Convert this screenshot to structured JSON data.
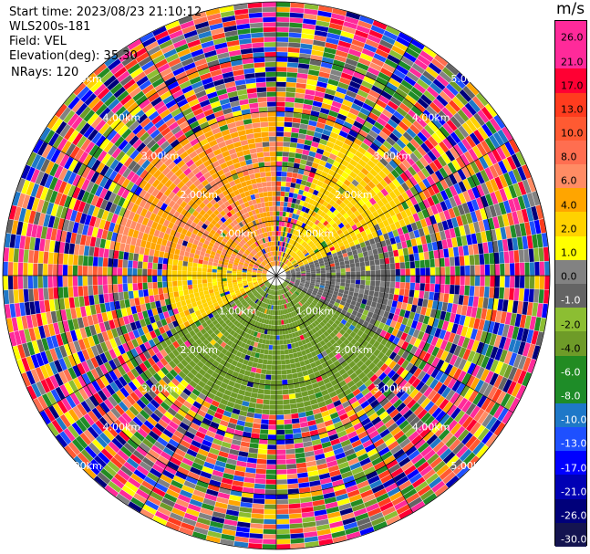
{
  "header": {
    "start_time": "Start time: 2023/08/23 21:10:12",
    "instrument": "WLS200s-181",
    "field": "Field: VEL",
    "elevation": "Elevation(deg): 35.30",
    "nrays": "NRays: 120"
  },
  "colorbar": {
    "unit": "m/s",
    "labels": [
      "26.0",
      "21.0",
      "17.0",
      "13.0",
      "10.0",
      "8.0",
      "6.0",
      "4.0",
      "2.0",
      "1.0",
      "0.0",
      "-1.0",
      "-2.0",
      "-4.0",
      "-6.0",
      "-8.0",
      "-10.0",
      "-13.0",
      "-17.0",
      "-21.0",
      "-26.0",
      "-30.0"
    ],
    "colors": [
      "#ff2a9a",
      "#ff2a9a",
      "#ff0033",
      "#ff3c1e",
      "#ff5a32",
      "#ff6e50",
      "#ff8c64",
      "#ffa500",
      "#ffd200",
      "#ffff00",
      "#828282",
      "#646464",
      "#8cbe32",
      "#6e9b28",
      "#228b22",
      "#1e8c28",
      "#1e78c8",
      "#1e50ff",
      "#0000ff",
      "#0000b4",
      "#00007a",
      "#141450"
    ]
  },
  "chart_data": {
    "type": "heatmap",
    "title": "",
    "projection": "polar PPI",
    "field": "VEL",
    "units": "m/s",
    "nrays": 120,
    "range_rings_km": [
      1.0,
      2.0,
      3.0,
      4.0,
      5.0
    ],
    "max_range_km": 5.0,
    "color_levels": [
      26,
      21,
      17,
      13,
      10,
      8,
      6,
      4,
      2,
      1,
      0,
      -1,
      -2,
      -4,
      -6,
      -8,
      -10,
      -13,
      -17,
      -21,
      -26,
      -30
    ],
    "ring_labels": [
      "1.00km",
      "2.00km",
      "3.00km",
      "4.00km",
      "5.00km"
    ],
    "description_regions": [
      {
        "azimuth_range_deg": [
          280,
          360
        ],
        "range_km": [
          0,
          3
        ],
        "velocity_ms": 4
      },
      {
        "azimuth_range_deg": [
          240,
          300
        ],
        "range_km": [
          0,
          2
        ],
        "velocity_ms": 1.5
      },
      {
        "azimuth_range_deg": [
          20,
          70
        ],
        "range_km": [
          0,
          2.8
        ],
        "velocity_ms": 1.5
      },
      {
        "azimuth_range_deg": [
          70,
          120
        ],
        "range_km": [
          0,
          2.2
        ],
        "velocity_ms": -1.5
      },
      {
        "azimuth_range_deg": [
          120,
          240
        ],
        "range_km": [
          0,
          2.5
        ],
        "velocity_ms": -5
      }
    ]
  }
}
